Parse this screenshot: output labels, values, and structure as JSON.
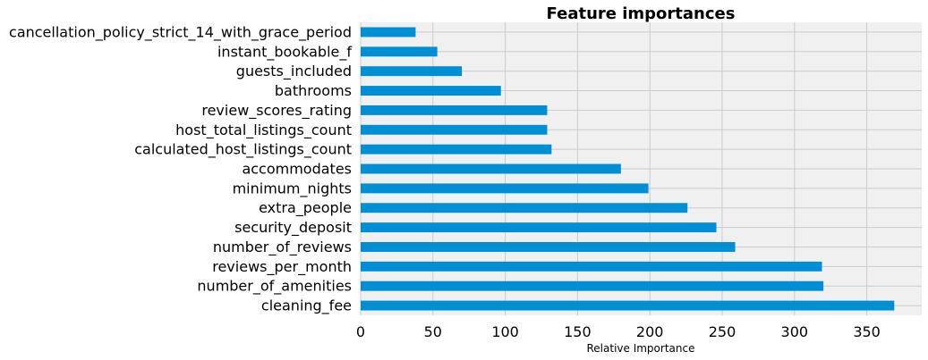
{
  "chart_data": {
    "type": "bar",
    "orientation": "horizontal",
    "title": "Feature importances",
    "xlabel": "Relative Importance",
    "ylabel": "",
    "xlim": [
      0,
      388
    ],
    "xticks": [
      0,
      50,
      100,
      150,
      200,
      250,
      300,
      350
    ],
    "grid": true,
    "bar_color": "#008fd5",
    "background_color": "#f0f0f0",
    "grid_color": "#cbcbcb",
    "categories": [
      "cleaning_fee",
      "number_of_amenities",
      "reviews_per_month",
      "number_of_reviews",
      "security_deposit",
      "extra_people",
      "minimum_nights",
      "accommodates",
      "calculated_host_listings_count",
      "host_total_listings_count",
      "review_scores_rating",
      "bathrooms",
      "guests_included",
      "instant_bookable_f",
      "cancellation_policy_strict_14_with_grace_period"
    ],
    "values": [
      369,
      320,
      319,
      259,
      246,
      226,
      199,
      180,
      132,
      129,
      129,
      97,
      70,
      53,
      38
    ]
  }
}
